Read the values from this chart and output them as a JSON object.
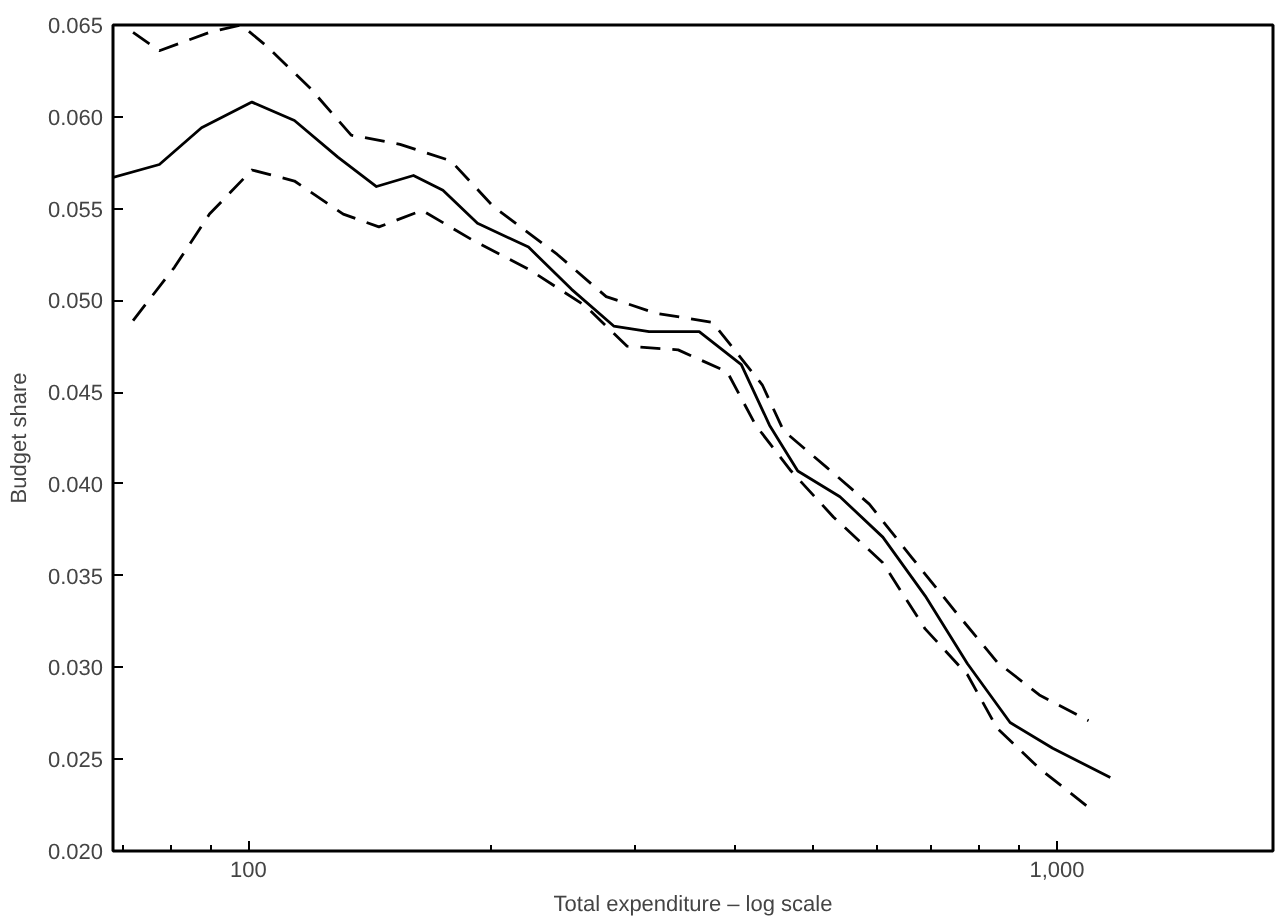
{
  "chart_data": {
    "type": "line",
    "xlabel": "Total expenditure – log scale",
    "ylabel": "Budget share",
    "log": "x",
    "grid": false,
    "xlim": [
      68,
      1850
    ],
    "ylim": [
      0.02,
      0.065
    ],
    "xticks": [
      {
        "value": 70,
        "label": null
      },
      {
        "value": 80,
        "label": null
      },
      {
        "value": 90,
        "label": null
      },
      {
        "value": 100,
        "label": "100"
      },
      {
        "value": 200,
        "label": null
      },
      {
        "value": 300,
        "label": null
      },
      {
        "value": 400,
        "label": null
      },
      {
        "value": 500,
        "label": null
      },
      {
        "value": 600,
        "label": null
      },
      {
        "value": 700,
        "label": null
      },
      {
        "value": 800,
        "label": null
      },
      {
        "value": 900,
        "label": null
      },
      {
        "value": 1000,
        "label": "1,000"
      }
    ],
    "yticks": [
      {
        "value": 0.02,
        "label": "0.020"
      },
      {
        "value": 0.025,
        "label": "0.025"
      },
      {
        "value": 0.03,
        "label": "0.030"
      },
      {
        "value": 0.035,
        "label": "0.035"
      },
      {
        "value": 0.04,
        "label": "0.040"
      },
      {
        "value": 0.045,
        "label": "0.045"
      },
      {
        "value": 0.05,
        "label": "0.050"
      },
      {
        "value": 0.055,
        "label": "0.055"
      },
      {
        "value": 0.06,
        "label": "0.060"
      },
      {
        "value": 0.065,
        "label": "0.065"
      }
    ],
    "series": [
      {
        "color": "#000000",
        "line_style": "solid",
        "x": [
          68,
          77.6,
          87.5,
          101,
          114,
          129,
          144,
          160,
          174,
          192,
          222,
          251,
          283,
          313,
          361,
          407,
          441,
          478,
          539,
          609,
          687,
          775,
          875,
          988,
          1164
        ],
        "values": [
          0.0567,
          0.0574,
          0.0594,
          0.0608,
          0.0598,
          0.0578,
          0.0562,
          0.0568,
          0.056,
          0.0542,
          0.0529,
          0.0506,
          0.0486,
          0.0483,
          0.0483,
          0.0465,
          0.0432,
          0.0407,
          0.0393,
          0.0371,
          0.0339,
          0.0302,
          0.027,
          0.0256,
          0.024
        ]
      },
      {
        "color": "#000000",
        "line_style": "dashed",
        "x": [
          72,
          77.6,
          89.5,
          98,
          105,
          119,
          134,
          154,
          178,
          201,
          241,
          277,
          319,
          375,
          432,
          459,
          519,
          586,
          661,
          747,
          843,
          951,
          1094
        ],
        "values": [
          0.0646,
          0.0636,
          0.0646,
          0.065,
          0.0639,
          0.0616,
          0.059,
          0.0585,
          0.0576,
          0.0551,
          0.0525,
          0.0502,
          0.0493,
          0.0488,
          0.0454,
          0.0429,
          0.0409,
          0.0389,
          0.036,
          0.0331,
          0.0303,
          0.0285,
          0.0271
        ]
      },
      {
        "color": "#000000",
        "line_style": "dashed",
        "x": [
          72,
          81,
          89.5,
          101,
          114,
          131,
          145,
          164,
          189,
          222,
          261,
          294,
          340,
          391,
          424,
          469,
          529,
          609,
          687,
          775,
          843,
          951,
          1107
        ],
        "values": [
          0.0489,
          0.0518,
          0.0547,
          0.0571,
          0.0565,
          0.0547,
          0.054,
          0.0549,
          0.0533,
          0.0517,
          0.0497,
          0.0475,
          0.0473,
          0.0461,
          0.0432,
          0.0407,
          0.0382,
          0.0357,
          0.0321,
          0.0296,
          0.0267,
          0.0245,
          0.0222
        ]
      }
    ]
  }
}
